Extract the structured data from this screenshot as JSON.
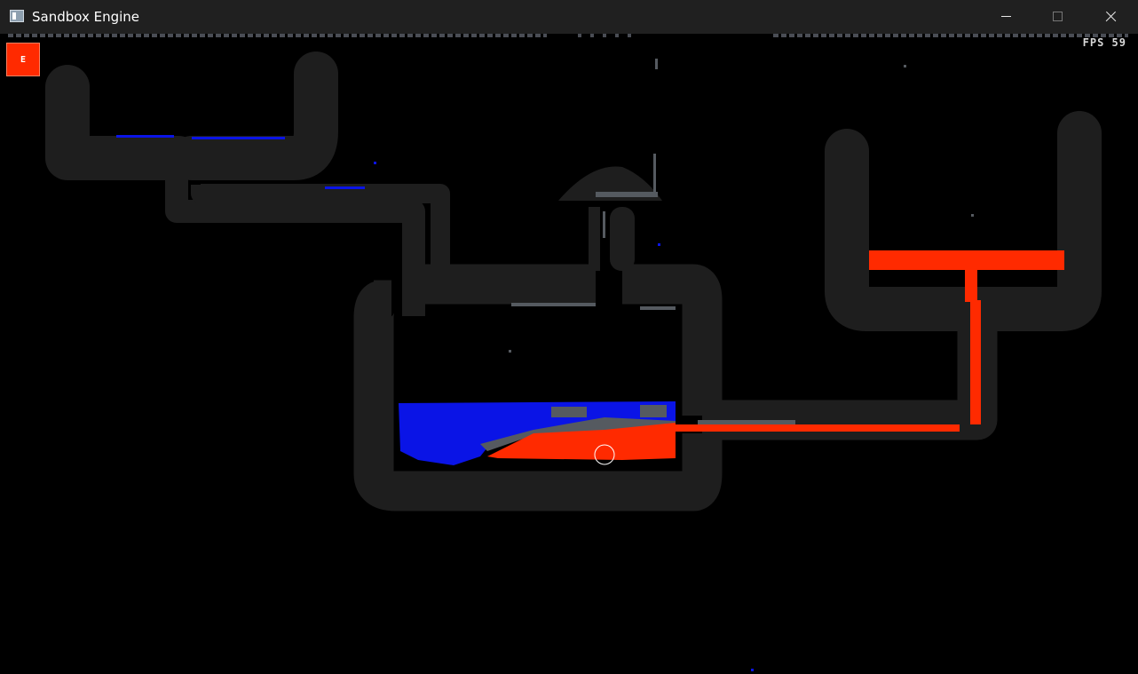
{
  "window": {
    "title": "Sandbox Engine",
    "icon": "app-window-icon"
  },
  "controls": {
    "minimize_icon": "minimize-icon",
    "maximize_icon": "maximize-icon",
    "close_icon": "close-icon"
  },
  "hud": {
    "edit_button_label": "E",
    "fps_text": "FPS 59"
  },
  "colors": {
    "background": "#000000",
    "wall": "#1e1e1e",
    "water": "#0a14e6",
    "lava": "#ff2a00",
    "stone": "#555a60",
    "edit_button": "#ff2a00",
    "cursor_ring": "#ffffff"
  },
  "materials": [
    "wall",
    "water",
    "lava",
    "stone"
  ]
}
